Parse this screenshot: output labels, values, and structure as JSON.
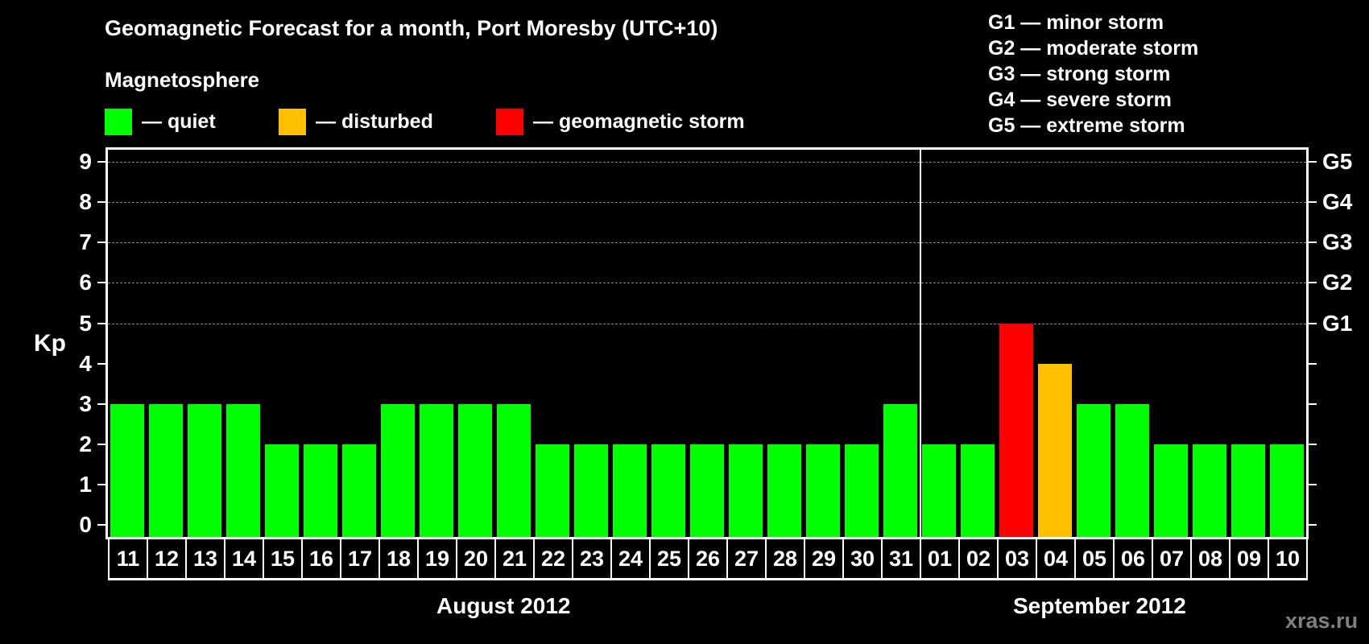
{
  "header": {
    "title": "Geomagnetic Forecast for a month, Port Moresby (UTC+10)",
    "subtitle": "Magnetosphere"
  },
  "legend": [
    {
      "label": "— quiet",
      "color": "#00ff00"
    },
    {
      "label": "— disturbed",
      "color": "#ffc000"
    },
    {
      "label": "— geomagnetic storm",
      "color": "#ff0000"
    }
  ],
  "g_scale": [
    "G1 — minor storm",
    "G2 — moderate storm",
    "G3 — strong storm",
    "G4 — severe storm",
    "G5 — extreme storm"
  ],
  "axes": {
    "y_label": "Kp",
    "y_ticks": [
      "0",
      "1",
      "2",
      "3",
      "4",
      "5",
      "6",
      "7",
      "8",
      "9"
    ],
    "right_ticks": {
      "5": "G1",
      "6": "G2",
      "7": "G3",
      "8": "G4",
      "9": "G5"
    }
  },
  "months": [
    "August 2012",
    "September 2012"
  ],
  "watermark": "xras.ru",
  "chart_data": {
    "type": "bar",
    "title": "Geomagnetic Forecast for a month, Port Moresby (UTC+10)",
    "subtitle": "Magnetosphere",
    "xlabel": "",
    "ylabel": "Kp",
    "ylim": [
      0,
      9
    ],
    "grid": "horizontal dashed at Kp 5-9",
    "legend_position": "top",
    "categories": [
      "11",
      "12",
      "13",
      "14",
      "15",
      "16",
      "17",
      "18",
      "19",
      "20",
      "21",
      "22",
      "23",
      "24",
      "25",
      "26",
      "27",
      "28",
      "29",
      "30",
      "31",
      "01",
      "02",
      "03",
      "04",
      "05",
      "06",
      "07",
      "08",
      "09",
      "10"
    ],
    "month_groups": [
      {
        "label": "August 2012",
        "from": "11",
        "to": "31"
      },
      {
        "label": "September 2012",
        "from": "01",
        "to": "10"
      }
    ],
    "values": [
      3,
      3,
      3,
      3,
      2,
      2,
      2,
      3,
      3,
      3,
      3,
      2,
      2,
      2,
      2,
      2,
      2,
      2,
      2,
      2,
      3,
      2,
      2,
      5,
      4,
      3,
      3,
      2,
      2,
      2,
      2
    ],
    "status": [
      "quiet",
      "quiet",
      "quiet",
      "quiet",
      "quiet",
      "quiet",
      "quiet",
      "quiet",
      "quiet",
      "quiet",
      "quiet",
      "quiet",
      "quiet",
      "quiet",
      "quiet",
      "quiet",
      "quiet",
      "quiet",
      "quiet",
      "quiet",
      "quiet",
      "quiet",
      "quiet",
      "storm",
      "disturbed",
      "quiet",
      "quiet",
      "quiet",
      "quiet",
      "quiet",
      "quiet"
    ],
    "colors": {
      "quiet": "#00ff00",
      "disturbed": "#ffc000",
      "storm": "#ff0000"
    },
    "right_axis": {
      "5": "G1",
      "6": "G2",
      "7": "G3",
      "8": "G4",
      "9": "G5"
    }
  }
}
